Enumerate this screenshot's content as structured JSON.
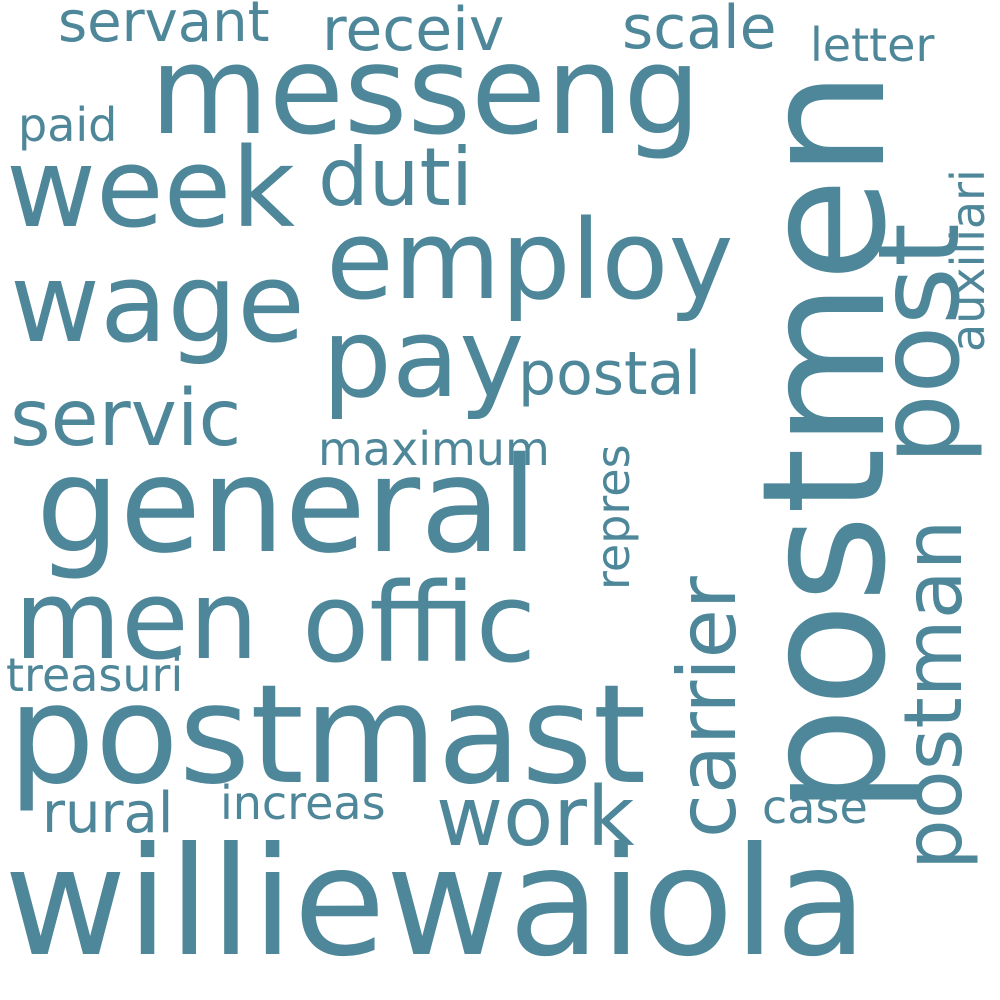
{
  "color": "#4e8799",
  "words": {
    "williewaiola": "williewaiola",
    "postmen": "postmen",
    "postmast": "postmast",
    "general": "general",
    "messeng": "messeng",
    "offic": "offic",
    "employ": "employ",
    "wage": "wage",
    "week": "week",
    "post": "post",
    "pay": "pay",
    "men": "men",
    "servic": "servic",
    "carrier": "carrier",
    "postman": "postman",
    "work": "work",
    "duti": "duti",
    "postal": "postal",
    "receiv": "receiv",
    "servant": "servant",
    "scale": "scale",
    "letter": "letter",
    "paid": "paid",
    "auxiliari": "auxiliari",
    "maximum": "maximum",
    "repres": "repres",
    "treasuri": "treasuri",
    "rural": "rural",
    "increas": "increas",
    "case": "case"
  }
}
